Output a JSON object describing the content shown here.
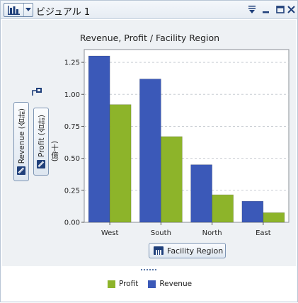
{
  "window": {
    "title": "ビジュアル 1"
  },
  "icons": {
    "chart_type": "bar-chart-icon",
    "menu": "filter-menu-icon",
    "minimize": "minimize-icon",
    "maximize": "maximize-icon",
    "close": "close-icon",
    "role_category": "category-icon",
    "role_measure": "measure-icon",
    "axis_swap": "axis-link-icon"
  },
  "roles": {
    "y_primary": "Revenue (合計)",
    "y_secondary": "Profit (合計)",
    "x": "Facility Region",
    "y_unit": "(十億)"
  },
  "colors": {
    "revenue": "#3b59b8",
    "profit": "#8db42a",
    "grid": "#c9cdd3",
    "plot_bg": "#ffffff",
    "panel_bg": "#eef1f4"
  },
  "chart_data": {
    "type": "bar",
    "title": "Revenue, Profit / Facility Region",
    "xlabel": "Facility Region",
    "ylabel": "(十億)",
    "categories": [
      "West",
      "South",
      "North",
      "East"
    ],
    "series": [
      {
        "name": "Revenue",
        "color": "#3b59b8",
        "values": [
          1.3,
          1.12,
          0.45,
          0.165
        ]
      },
      {
        "name": "Profit",
        "color": "#8db42a",
        "values": [
          0.92,
          0.67,
          0.215,
          0.075
        ]
      }
    ],
    "ylim": [
      0,
      1.35
    ],
    "yticks": [
      "0.00",
      "0.25",
      "0.50",
      "0.75",
      "1.00",
      "1.25"
    ],
    "grid": true,
    "legend": {
      "placement": "bottom",
      "items": [
        {
          "name": "Profit",
          "color": "#8db42a"
        },
        {
          "name": "Revenue",
          "color": "#3b59b8"
        }
      ]
    }
  }
}
